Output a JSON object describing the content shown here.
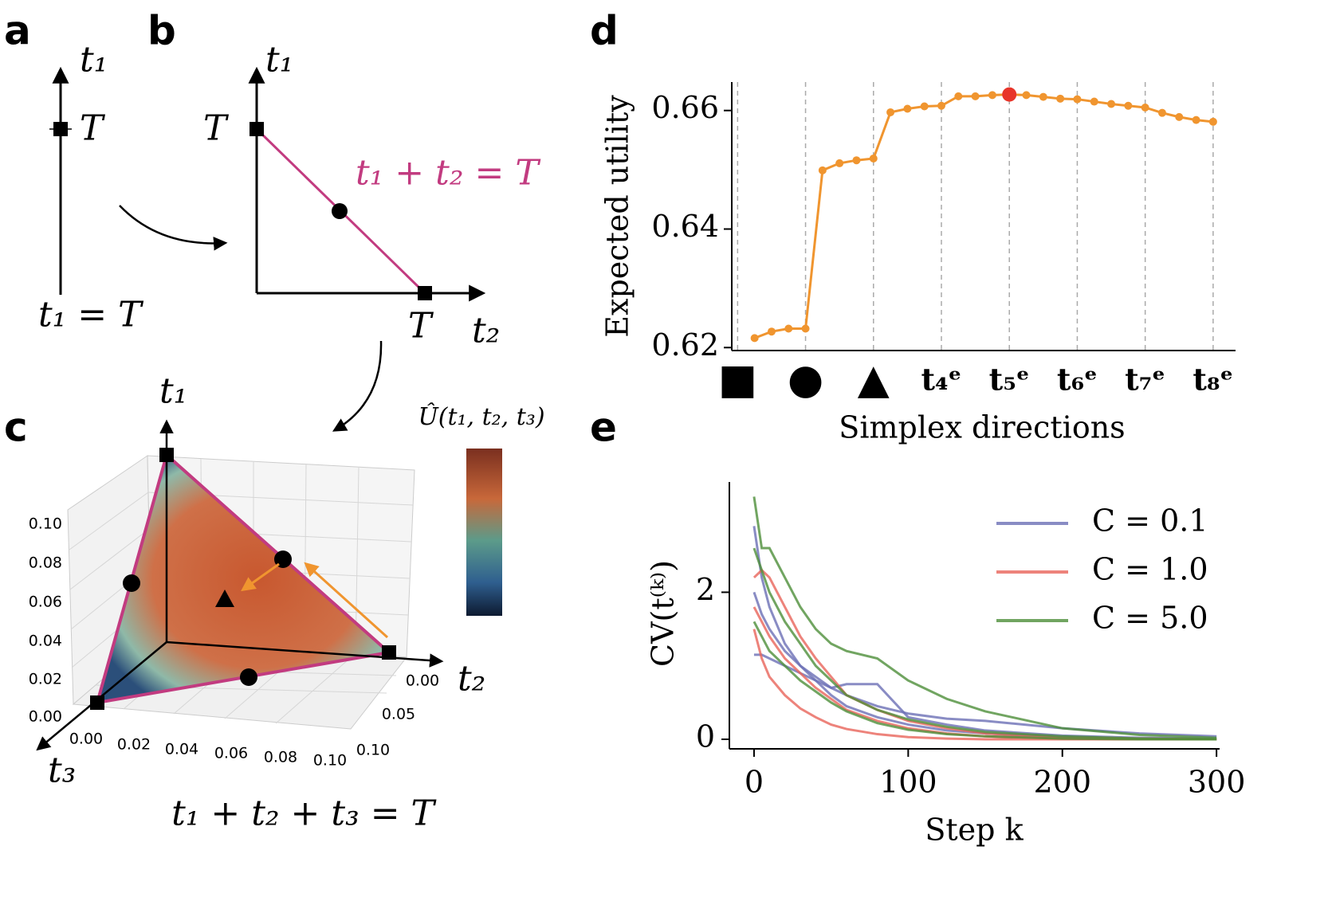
{
  "panel_a": {
    "label": "a",
    "axis_label": "t₁",
    "tick": "T",
    "equation": "t₁ = T"
  },
  "panel_b": {
    "label": "b",
    "y_axis_label": "t₁",
    "x_axis_label": "t₂",
    "y_tick": "T",
    "x_tick": "T",
    "equation": "t₁ + t₂ = T"
  },
  "panel_c": {
    "label": "c",
    "axis_labels": [
      "t₁",
      "t₂",
      "t₃"
    ],
    "equation": "t₁ + t₂ + t₃ = T",
    "colorbar_label": "Û(t₁, t₂, t₃)",
    "z_ticks": [
      "0.10",
      "0.08",
      "0.06",
      "0.04",
      "0.02",
      "0.00"
    ],
    "x_ticks": [
      "0.00",
      "0.02",
      "0.04",
      "0.06",
      "0.08",
      "0.10"
    ],
    "y_ticks": [
      "0.00",
      "0.05",
      "0.10"
    ]
  },
  "chart_data": [
    {
      "type": "line",
      "panel_label": "d",
      "x_label": "Simplex directions",
      "y_label": "Expected utility",
      "x": [
        0.25,
        0.5,
        0.75,
        1,
        1.25,
        1.5,
        1.75,
        2,
        2.25,
        2.5,
        2.75,
        3,
        3.25,
        3.5,
        3.75,
        4,
        4.25,
        4.5,
        4.75,
        5,
        5.25,
        5.5,
        5.75,
        6,
        6.25,
        6.5,
        6.75,
        7
      ],
      "values": [
        0.6216,
        0.6227,
        0.6232,
        0.6232,
        0.6499,
        0.6511,
        0.6516,
        0.6519,
        0.6597,
        0.6603,
        0.6607,
        0.6608,
        0.6624,
        0.6624,
        0.6626,
        0.6627,
        0.6626,
        0.6623,
        0.662,
        0.6619,
        0.6615,
        0.6611,
        0.6608,
        0.6605,
        0.6596,
        0.6589,
        0.6584,
        0.6581
      ],
      "color": "#f0952f",
      "highlight_index": 15,
      "highlight_color": "#e8352a",
      "xlim": [
        -0.18,
        7.33
      ],
      "xticks": [
        {
          "value": 0,
          "label": "■"
        },
        {
          "value": 1,
          "label": "●"
        },
        {
          "value": 2,
          "label": "▲"
        },
        {
          "value": 3,
          "label": "t₄ᵉ"
        },
        {
          "value": 4,
          "label": "t₅ᵉ"
        },
        {
          "value": 5,
          "label": "t₆ᵉ"
        },
        {
          "value": 6,
          "label": "t₇ᵉ"
        },
        {
          "value": 7,
          "label": "t₈ᵉ"
        }
      ],
      "ylim": [
        0.6195,
        0.6648
      ],
      "yticks": [
        {
          "value": 0.62,
          "label": "0.62"
        },
        {
          "value": 0.64,
          "label": "0.64"
        },
        {
          "value": 0.66,
          "label": "0.66"
        }
      ],
      "grid": "x-dashed"
    },
    {
      "type": "multiline",
      "panel_label": "e",
      "x_label": "Step k",
      "y_label": "CV(t⁽ᵏ⁾)",
      "x": [
        0,
        5,
        10,
        20,
        30,
        40,
        50,
        60,
        80,
        100,
        125,
        150,
        200,
        250,
        300
      ],
      "series": [
        {
          "name": "C = 0.1",
          "color": "#6b6fb5",
          "runs": [
            [
              2.9,
              2.2,
              1.8,
              1.3,
              1.0,
              0.85,
              0.7,
              0.6,
              0.45,
              0.35,
              0.28,
              0.25,
              0.15,
              0.08,
              0.04
            ],
            [
              1.15,
              1.15,
              1.1,
              1.0,
              0.9,
              0.8,
              0.7,
              0.75,
              0.75,
              0.3,
              0.2,
              0.12,
              0.05,
              0.02,
              0.01
            ],
            [
              2.0,
              1.7,
              1.5,
              1.2,
              1.0,
              0.8,
              0.6,
              0.45,
              0.3,
              0.2,
              0.12,
              0.08,
              0.03,
              0.01,
              0.0
            ]
          ]
        },
        {
          "name": "C = 1.0",
          "color": "#e8645a",
          "runs": [
            [
              2.2,
              2.3,
              2.2,
              1.8,
              1.4,
              1.1,
              0.85,
              0.6,
              0.4,
              0.25,
              0.15,
              0.08,
              0.02,
              0.01,
              0.0
            ],
            [
              1.5,
              1.1,
              0.85,
              0.6,
              0.42,
              0.3,
              0.2,
              0.14,
              0.07,
              0.03,
              0.01,
              0.0,
              0.0,
              0.0,
              0.0
            ],
            [
              1.8,
              1.6,
              1.4,
              1.1,
              0.9,
              0.7,
              0.55,
              0.4,
              0.25,
              0.15,
              0.08,
              0.04,
              0.01,
              0.0,
              0.0
            ]
          ]
        },
        {
          "name": "C = 5.0",
          "color": "#4d8f3a",
          "runs": [
            [
              3.3,
              2.6,
              2.6,
              2.2,
              1.8,
              1.5,
              1.3,
              1.2,
              1.1,
              0.8,
              0.55,
              0.38,
              0.15,
              0.06,
              0.02
            ],
            [
              2.6,
              2.3,
              2.0,
              1.6,
              1.3,
              1.0,
              0.8,
              0.6,
              0.4,
              0.27,
              0.17,
              0.1,
              0.04,
              0.01,
              0.0
            ],
            [
              1.6,
              1.4,
              1.2,
              1.0,
              0.8,
              0.65,
              0.5,
              0.38,
              0.22,
              0.13,
              0.07,
              0.04,
              0.01,
              0.0,
              0.0
            ]
          ]
        }
      ],
      "xlim": [
        -16,
        302
      ],
      "xticks": [
        0,
        100,
        200,
        300
      ],
      "ylim": [
        -0.13,
        3.5
      ],
      "yticks": [
        0,
        2
      ],
      "legend": "upper right"
    }
  ]
}
